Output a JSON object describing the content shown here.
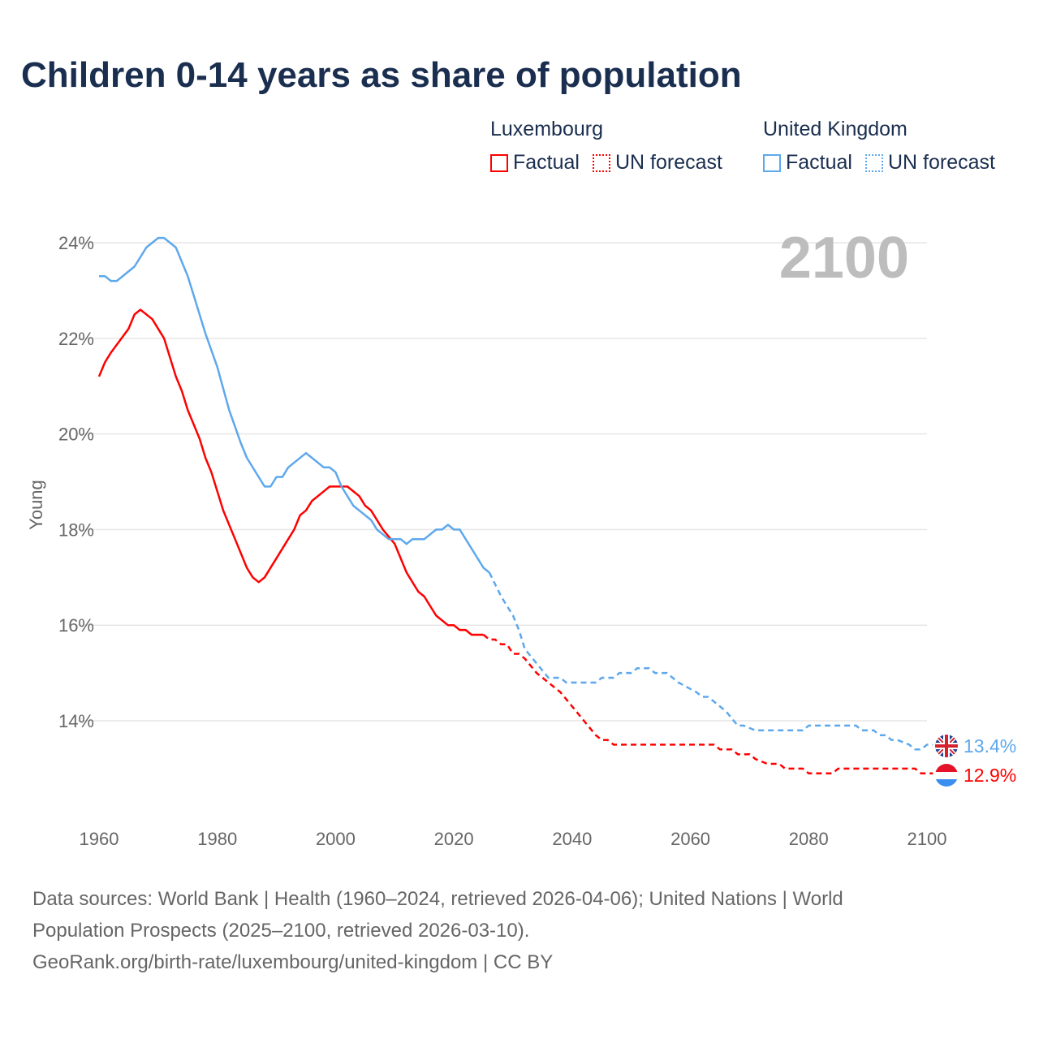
{
  "title": "Children 0-14 years as share of population",
  "legend": [
    {
      "country": "Luxembourg",
      "factual": "Factual",
      "forecast": "UN forecast",
      "color": "#ff0000"
    },
    {
      "country": "United Kingdom",
      "factual": "Factual",
      "forecast": "UN forecast",
      "color": "#5ea8ec"
    }
  ],
  "footer": {
    "line1": "Data sources: World Bank | Health (1960–2024, retrieved 2026-04-06); United Nations | World",
    "line2": "Population Prospects (2025–2100, retrieved 2026-03-10).",
    "line3": "GeoRank.org/birth-rate/luxembourg/united-kingdom | CC BY"
  },
  "chart_data": {
    "type": "line",
    "ylabel": "Young",
    "year_label": "2100",
    "xlim": [
      1960,
      2100
    ],
    "ylim": [
      12.4,
      24.3
    ],
    "xticks": [
      "1960",
      "1980",
      "2000",
      "2020",
      "2040",
      "2060",
      "2080",
      "2100"
    ],
    "yticks": [
      {
        "v": 14,
        "label": "14%"
      },
      {
        "v": 16,
        "label": "16%"
      },
      {
        "v": 18,
        "label": "18%"
      },
      {
        "v": 20,
        "label": "20%"
      },
      {
        "v": 22,
        "label": "22%"
      },
      {
        "v": 24,
        "label": "24%"
      }
    ],
    "series": [
      {
        "name": "Luxembourg",
        "color": "#ff0000",
        "end_label": "12.9%",
        "factual": [
          [
            1960,
            21.2
          ],
          [
            1961,
            21.5
          ],
          [
            1962,
            21.7
          ],
          [
            1965,
            22.2
          ],
          [
            1966,
            22.5
          ],
          [
            1967,
            22.6
          ],
          [
            1969,
            22.4
          ],
          [
            1971,
            22.0
          ],
          [
            1973,
            21.2
          ],
          [
            1974,
            20.9
          ],
          [
            1975,
            20.5
          ],
          [
            1977,
            19.9
          ],
          [
            1978,
            19.5
          ],
          [
            1979,
            19.2
          ],
          [
            1981,
            18.4
          ],
          [
            1983,
            17.8
          ],
          [
            1985,
            17.2
          ],
          [
            1986,
            17.0
          ],
          [
            1987,
            16.9
          ],
          [
            1988,
            17.0
          ],
          [
            1990,
            17.4
          ],
          [
            1992,
            17.8
          ],
          [
            1993,
            18.0
          ],
          [
            1994,
            18.3
          ],
          [
            1995,
            18.4
          ],
          [
            1996,
            18.6
          ],
          [
            1998,
            18.8
          ],
          [
            1999,
            18.9
          ],
          [
            2002,
            18.9
          ],
          [
            2004,
            18.7
          ],
          [
            2005,
            18.5
          ],
          [
            2006,
            18.4
          ],
          [
            2008,
            18.0
          ],
          [
            2010,
            17.7
          ],
          [
            2012,
            17.1
          ],
          [
            2014,
            16.7
          ],
          [
            2015,
            16.6
          ],
          [
            2017,
            16.2
          ],
          [
            2019,
            16.0
          ],
          [
            2020,
            16.0
          ],
          [
            2021,
            15.9
          ],
          [
            2022,
            15.9
          ],
          [
            2023,
            15.8
          ],
          [
            2025,
            15.8
          ]
        ],
        "forecast": [
          [
            2025,
            15.8
          ],
          [
            2026,
            15.7
          ],
          [
            2027,
            15.7
          ],
          [
            2028,
            15.6
          ],
          [
            2029,
            15.6
          ],
          [
            2030,
            15.4
          ],
          [
            2031,
            15.4
          ],
          [
            2032,
            15.3
          ],
          [
            2034,
            15.0
          ],
          [
            2036,
            14.8
          ],
          [
            2038,
            14.6
          ],
          [
            2040,
            14.3
          ],
          [
            2042,
            14.0
          ],
          [
            2044,
            13.7
          ],
          [
            2045,
            13.6
          ],
          [
            2046,
            13.6
          ],
          [
            2047,
            13.5
          ],
          [
            2064,
            13.5
          ],
          [
            2065,
            13.4
          ],
          [
            2067,
            13.4
          ],
          [
            2068,
            13.3
          ],
          [
            2070,
            13.3
          ],
          [
            2071,
            13.2
          ],
          [
            2073,
            13.1
          ],
          [
            2075,
            13.1
          ],
          [
            2076,
            13.0
          ],
          [
            2079,
            13.0
          ],
          [
            2080,
            12.9
          ],
          [
            2084,
            12.9
          ],
          [
            2085,
            13.0
          ],
          [
            2098,
            13.0
          ],
          [
            2099,
            12.9
          ],
          [
            2101,
            12.9
          ]
        ]
      },
      {
        "name": "United Kingdom",
        "color": "#5ea8ec",
        "end_label": "13.4%",
        "factual": [
          [
            1960,
            23.3
          ],
          [
            1961,
            23.3
          ],
          [
            1962,
            23.2
          ],
          [
            1963,
            23.2
          ],
          [
            1966,
            23.5
          ],
          [
            1968,
            23.9
          ],
          [
            1970,
            24.1
          ],
          [
            1971,
            24.1
          ],
          [
            1973,
            23.9
          ],
          [
            1975,
            23.3
          ],
          [
            1976,
            22.9
          ],
          [
            1978,
            22.1
          ],
          [
            1980,
            21.4
          ],
          [
            1982,
            20.5
          ],
          [
            1984,
            19.8
          ],
          [
            1985,
            19.5
          ],
          [
            1987,
            19.1
          ],
          [
            1988,
            18.9
          ],
          [
            1989,
            18.9
          ],
          [
            1990,
            19.1
          ],
          [
            1991,
            19.1
          ],
          [
            1992,
            19.3
          ],
          [
            1995,
            19.6
          ],
          [
            1998,
            19.3
          ],
          [
            1999,
            19.3
          ],
          [
            2000,
            19.2
          ],
          [
            2001,
            18.9
          ],
          [
            2003,
            18.5
          ],
          [
            2006,
            18.2
          ],
          [
            2007,
            18.0
          ],
          [
            2009,
            17.8
          ],
          [
            2011,
            17.8
          ],
          [
            2012,
            17.7
          ],
          [
            2013,
            17.8
          ],
          [
            2015,
            17.8
          ],
          [
            2017,
            18.0
          ],
          [
            2018,
            18.0
          ],
          [
            2019,
            18.1
          ],
          [
            2020,
            18.0
          ],
          [
            2021,
            18.0
          ],
          [
            2025,
            17.2
          ],
          [
            2026,
            17.1
          ]
        ],
        "forecast": [
          [
            2026,
            17.1
          ],
          [
            2028,
            16.6
          ],
          [
            2030,
            16.2
          ],
          [
            2031,
            15.9
          ],
          [
            2032,
            15.5
          ],
          [
            2034,
            15.2
          ],
          [
            2036,
            14.9
          ],
          [
            2038,
            14.9
          ],
          [
            2039,
            14.8
          ],
          [
            2044,
            14.8
          ],
          [
            2045,
            14.9
          ],
          [
            2047,
            14.9
          ],
          [
            2048,
            15.0
          ],
          [
            2050,
            15.0
          ],
          [
            2051,
            15.1
          ],
          [
            2053,
            15.1
          ],
          [
            2054,
            15.0
          ],
          [
            2056,
            15.0
          ],
          [
            2058,
            14.8
          ],
          [
            2061,
            14.6
          ],
          [
            2062,
            14.5
          ],
          [
            2063,
            14.5
          ],
          [
            2066,
            14.2
          ],
          [
            2068,
            13.9
          ],
          [
            2069,
            13.9
          ],
          [
            2071,
            13.8
          ],
          [
            2079,
            13.8
          ],
          [
            2080,
            13.9
          ],
          [
            2088,
            13.9
          ],
          [
            2089,
            13.8
          ],
          [
            2091,
            13.8
          ],
          [
            2092,
            13.7
          ],
          [
            2093,
            13.7
          ],
          [
            2094,
            13.6
          ],
          [
            2095,
            13.6
          ],
          [
            2097,
            13.5
          ],
          [
            2098,
            13.4
          ],
          [
            2099,
            13.4
          ],
          [
            2100,
            13.5
          ],
          [
            2101,
            13.5
          ]
        ]
      }
    ]
  }
}
